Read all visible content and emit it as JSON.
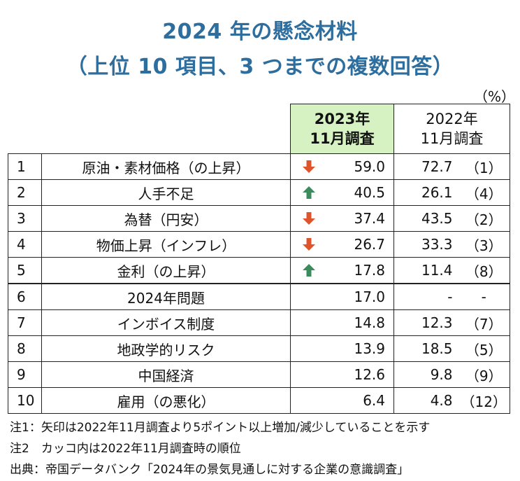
{
  "title_line1": "2024 年の懸念材料",
  "title_line2": "（上位 10 項目、3 つまでの複数回答）",
  "unit": "（%）",
  "header": {
    "col_2023_line1": "2023年",
    "col_2023_line2": "11月調査",
    "col_2022_line1": "2022年",
    "col_2022_line2": "11月調査"
  },
  "colors": {
    "up": "#3a8c5c",
    "down": "#e0542b",
    "header_bg": "#d6f2c2",
    "title": "#2e6e9e"
  },
  "rows": [
    {
      "rank": "1",
      "item": "原油・素材価格（の上昇）",
      "arrow": "down",
      "v2023": "59.0",
      "v2022": "72.7",
      "rank2022": "（1）"
    },
    {
      "rank": "2",
      "item": "人手不足",
      "arrow": "up",
      "v2023": "40.5",
      "v2022": "26.1",
      "rank2022": "（4）"
    },
    {
      "rank": "3",
      "item": "為替（円安）",
      "arrow": "down",
      "v2023": "37.4",
      "v2022": "43.5",
      "rank2022": "（2）"
    },
    {
      "rank": "4",
      "item": "物価上昇（インフレ）",
      "arrow": "down",
      "v2023": "26.7",
      "v2022": "33.3",
      "rank2022": "（3）"
    },
    {
      "rank": "5",
      "item": "金利（の上昇）",
      "arrow": "up",
      "v2023": "17.8",
      "v2022": "11.4",
      "rank2022": "（8）"
    },
    {
      "rank": "6",
      "item": "2024年問題",
      "arrow": "",
      "v2023": "17.0",
      "v2022": "-",
      "rank2022": "-"
    },
    {
      "rank": "7",
      "item": "インボイス制度",
      "arrow": "",
      "v2023": "14.8",
      "v2022": "12.3",
      "rank2022": "（7）"
    },
    {
      "rank": "8",
      "item": "地政学的リスク",
      "arrow": "",
      "v2023": "13.9",
      "v2022": "18.5",
      "rank2022": "（5）"
    },
    {
      "rank": "9",
      "item": "中国経済",
      "arrow": "",
      "v2023": "12.6",
      "v2022": "9.8",
      "rank2022": "（9）"
    },
    {
      "rank": "10",
      "item": "雇用（の悪化）",
      "arrow": "",
      "v2023": "6.4",
      "v2022": "4.8",
      "rank2022": "（12）"
    }
  ],
  "notes": [
    "注1：矢印は2022年11月調査より5ポイント以上増加/減少していることを示す",
    "注2　カッコ内は2022年11月調査時の順位",
    "出典：帝国データバンク「2024年の景気見通しに対する企業の意識調査」"
  ]
}
